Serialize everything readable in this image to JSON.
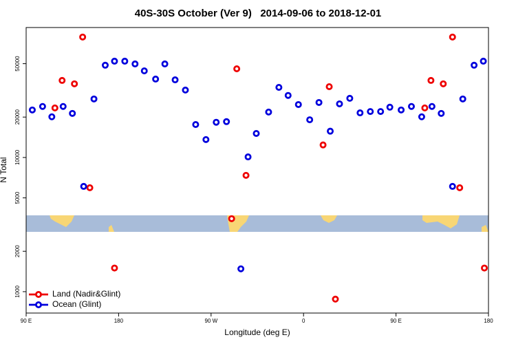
{
  "chart_data": {
    "type": "scatter",
    "title": "40S-30S October (Ver 9)   2014-09-06 to 2018-12-01",
    "x_label": "Longitude (deg E)",
    "y_label": "N Total",
    "y_log": true,
    "legend": "bottom-left",
    "xlim": [
      90,
      540
    ],
    "ylim": [
      693,
      93000
    ],
    "xticks": [
      {
        "value": 90,
        "label": "90 E"
      },
      {
        "value": 180,
        "label": "180"
      },
      {
        "value": 270,
        "label": "90 W"
      },
      {
        "value": 360,
        "label": "0"
      },
      {
        "value": 450,
        "label": "90 E"
      },
      {
        "value": 540,
        "label": "180"
      }
    ],
    "yticks": [
      1000,
      2000,
      5000,
      10000,
      20000,
      50000
    ],
    "series": [
      {
        "name": "Land (Nadir&Glint)",
        "color": "#ee0000",
        "x": [
          118,
          125,
          137,
          145,
          152,
          176,
          290,
          295,
          304,
          379,
          385,
          391,
          478,
          484,
          496,
          505,
          512,
          536
        ],
        "values": [
          23400,
          37500,
          35400,
          79000,
          5950,
          1500,
          3500,
          45800,
          7360,
          12400,
          33700,
          880,
          23400,
          37500,
          35400,
          79000,
          5950,
          1500
        ]
      },
      {
        "name": "Ocean (Glint)",
        "color": "#0000dd",
        "x": [
          96,
          106,
          115,
          126,
          135,
          146,
          156,
          167,
          176,
          186,
          196,
          205,
          216,
          225,
          235,
          245,
          255,
          265,
          275,
          285,
          299,
          306,
          314,
          326,
          336,
          345,
          355,
          366,
          375,
          386,
          395,
          405,
          415,
          425,
          435,
          444,
          455,
          465,
          475,
          485,
          494,
          505,
          515,
          526,
          535
        ],
        "values": [
          22600,
          24000,
          20100,
          24000,
          21300,
          6090,
          27300,
          48700,
          52200,
          52200,
          49800,
          44200,
          38400,
          49800,
          37900,
          31800,
          17600,
          13600,
          18300,
          18500,
          1480,
          10100,
          15100,
          21800,
          33300,
          29000,
          24800,
          19100,
          25700,
          15700,
          25100,
          27600,
          21500,
          22000,
          22000,
          23700,
          22600,
          24000,
          20100,
          24000,
          21300,
          6090,
          27300,
          48700,
          52200
        ]
      }
    ]
  }
}
